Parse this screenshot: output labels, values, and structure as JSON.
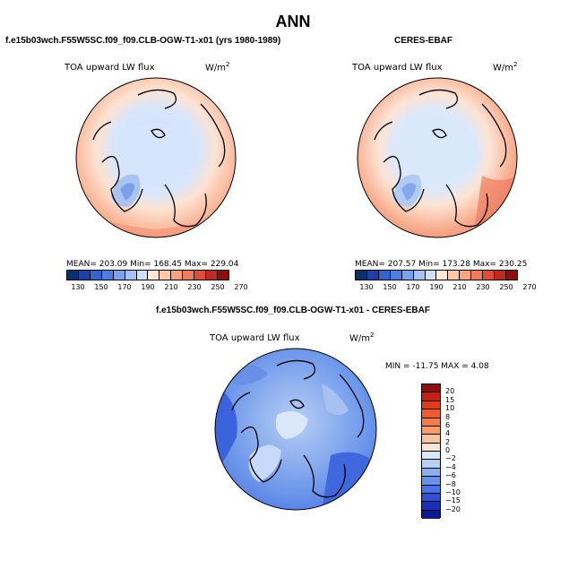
{
  "main_title": "ANN",
  "panels": {
    "model": {
      "title": "f.e15b03wch.F55W5SC.f09_f09.CLB-OGW-T1-x01 (yrs 1980-1989)",
      "var_label": "TOA upward LW flux",
      "units": "W/m",
      "units_sup": "2",
      "stats": "MEAN= 203.09   Min= 168.45   Max= 229.04"
    },
    "obs": {
      "title": "CERES-EBAF",
      "var_label": "TOA upward LW flux",
      "units": "W/m",
      "units_sup": "2",
      "stats": "MEAN= 207.57   Min= 173.28   Max= 230.25"
    },
    "diff": {
      "title": "f.e15b03wch.F55W5SC.f09_f09.CLB-OGW-T1-x01 - CERES-EBAF",
      "var_label": "TOA upward LW flux",
      "units": "W/m",
      "units_sup": "2",
      "stats": "MIN = -11.75 MAX =   4.08"
    }
  },
  "horizontal_legend": {
    "labels": [
      "130",
      "150",
      "170",
      "190",
      "210",
      "230",
      "250",
      "270"
    ],
    "colors": [
      "#08306b",
      "#1e3fa8",
      "#3366cc",
      "#4d7de0",
      "#7aa3ee",
      "#a5c4f5",
      "#cfe1fa",
      "#ffe6d5",
      "#fcc9a8",
      "#f9a27f",
      "#f07b5c",
      "#de4d3a",
      "#c02a23",
      "#8f0d0d"
    ]
  },
  "vertical_legend": {
    "labels": [
      "20",
      "15",
      "10",
      "8",
      "6",
      "4",
      "2",
      "0",
      "−2",
      "−4",
      "−6",
      "−8",
      "−10",
      "−15",
      "−20"
    ],
    "colors": [
      "#8f0d0d",
      "#c41f12",
      "#e33b1a",
      "#f25a2c",
      "#f57a45",
      "#f79c6c",
      "#fac3a0",
      "#fde4d0",
      "#dbe7fb",
      "#b7cef6",
      "#8aaeef",
      "#6892ea",
      "#4a73e3",
      "#2b50d6",
      "#1730b8",
      "#0a1a90"
    ]
  }
}
